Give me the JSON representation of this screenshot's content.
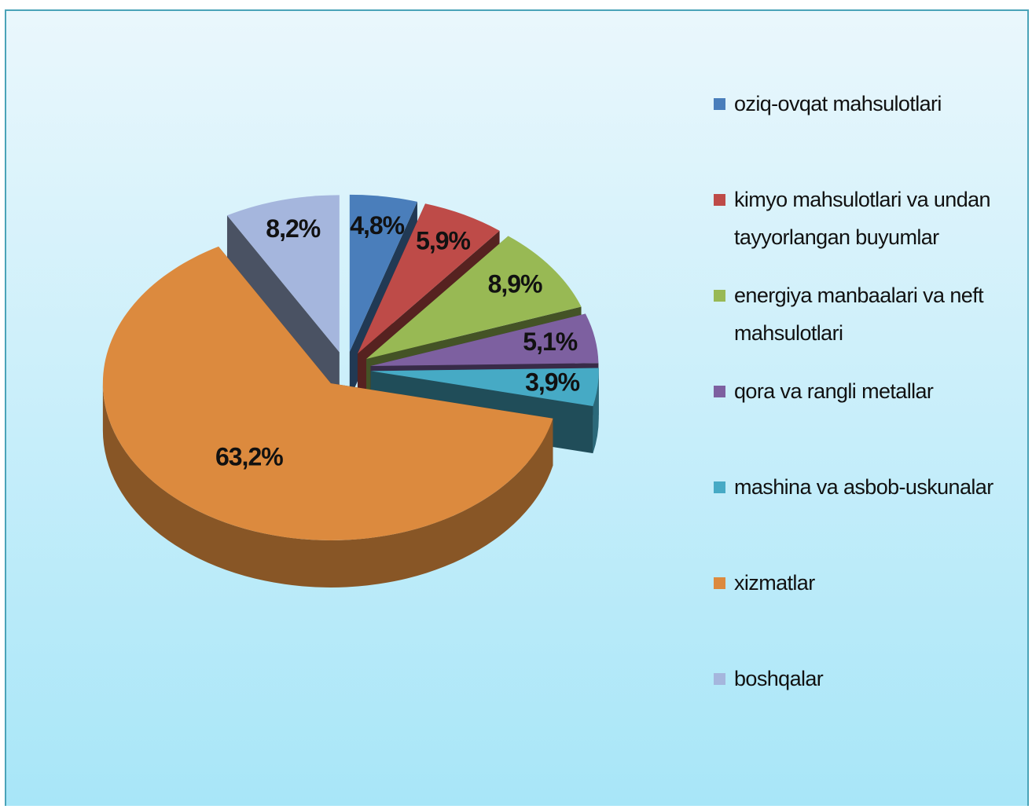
{
  "chart_data": {
    "type": "pie",
    "categories": [
      "oziq-ovqat mahsulotlari",
      "kimyo mahsulotlari va undan tayyorlangan buyumlar",
      "energiya manbaalari va neft mahsulotlari",
      "qora va rangli metallar",
      "mashina va asbob-uskunalar",
      "xizmatlar",
      "boshqalar"
    ],
    "values": [
      4.8,
      5.9,
      8.9,
      5.1,
      3.9,
      63.2,
      8.2
    ],
    "value_labels": [
      "4,8%",
      "5,9%",
      "8,9%",
      "5,1%",
      "3,9%",
      "63,2%",
      "8,2%"
    ],
    "colors": [
      "#4a7ebb",
      "#be4b48",
      "#98b954",
      "#7d60a0",
      "#46aac5",
      "#dc8a3e",
      "#a5b6dd"
    ],
    "legend": "right"
  }
}
